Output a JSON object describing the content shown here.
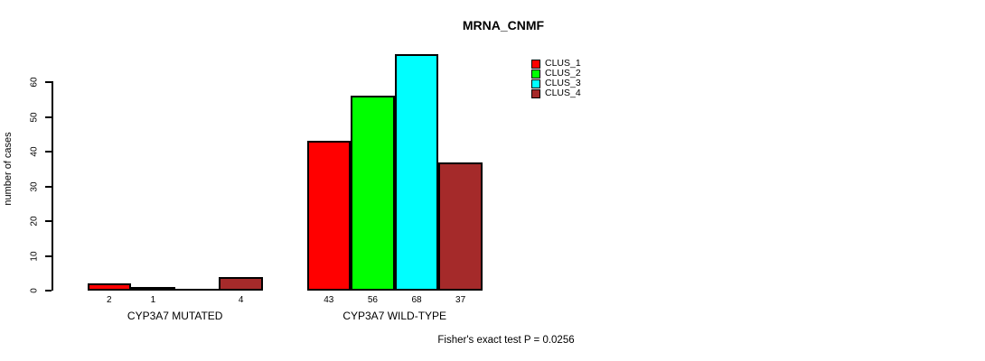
{
  "title": "MRNA_CNMF",
  "footer": "Fisher's exact test P = 0.0256",
  "chart_data": {
    "type": "bar",
    "title": "MRNA_CNMF",
    "xlabel": "",
    "ylabel": "number of cases",
    "ylim": [
      0,
      68
    ],
    "yticks": [
      0,
      10,
      20,
      30,
      40,
      50,
      60
    ],
    "grid": false,
    "legend_position": "top-right",
    "groups": [
      "CYP3A7 MUTATED",
      "CYP3A7 WILD-TYPE"
    ],
    "series": [
      {
        "name": "CLUS_1",
        "color": "#ff0000",
        "values": [
          2,
          43
        ]
      },
      {
        "name": "CLUS_2",
        "color": "#00ff00",
        "values": [
          1,
          56
        ]
      },
      {
        "name": "CLUS_3",
        "color": "#00ffff",
        "values": [
          0,
          68
        ]
      },
      {
        "name": "CLUS_4",
        "color": "#a52a2a",
        "values": [
          4,
          37
        ]
      }
    ],
    "bar_labels": [
      [
        "2",
        "1",
        "",
        "4"
      ],
      [
        "43",
        "56",
        "68",
        "37"
      ]
    ],
    "annotation": "Fisher's exact test P = 0.0256"
  }
}
